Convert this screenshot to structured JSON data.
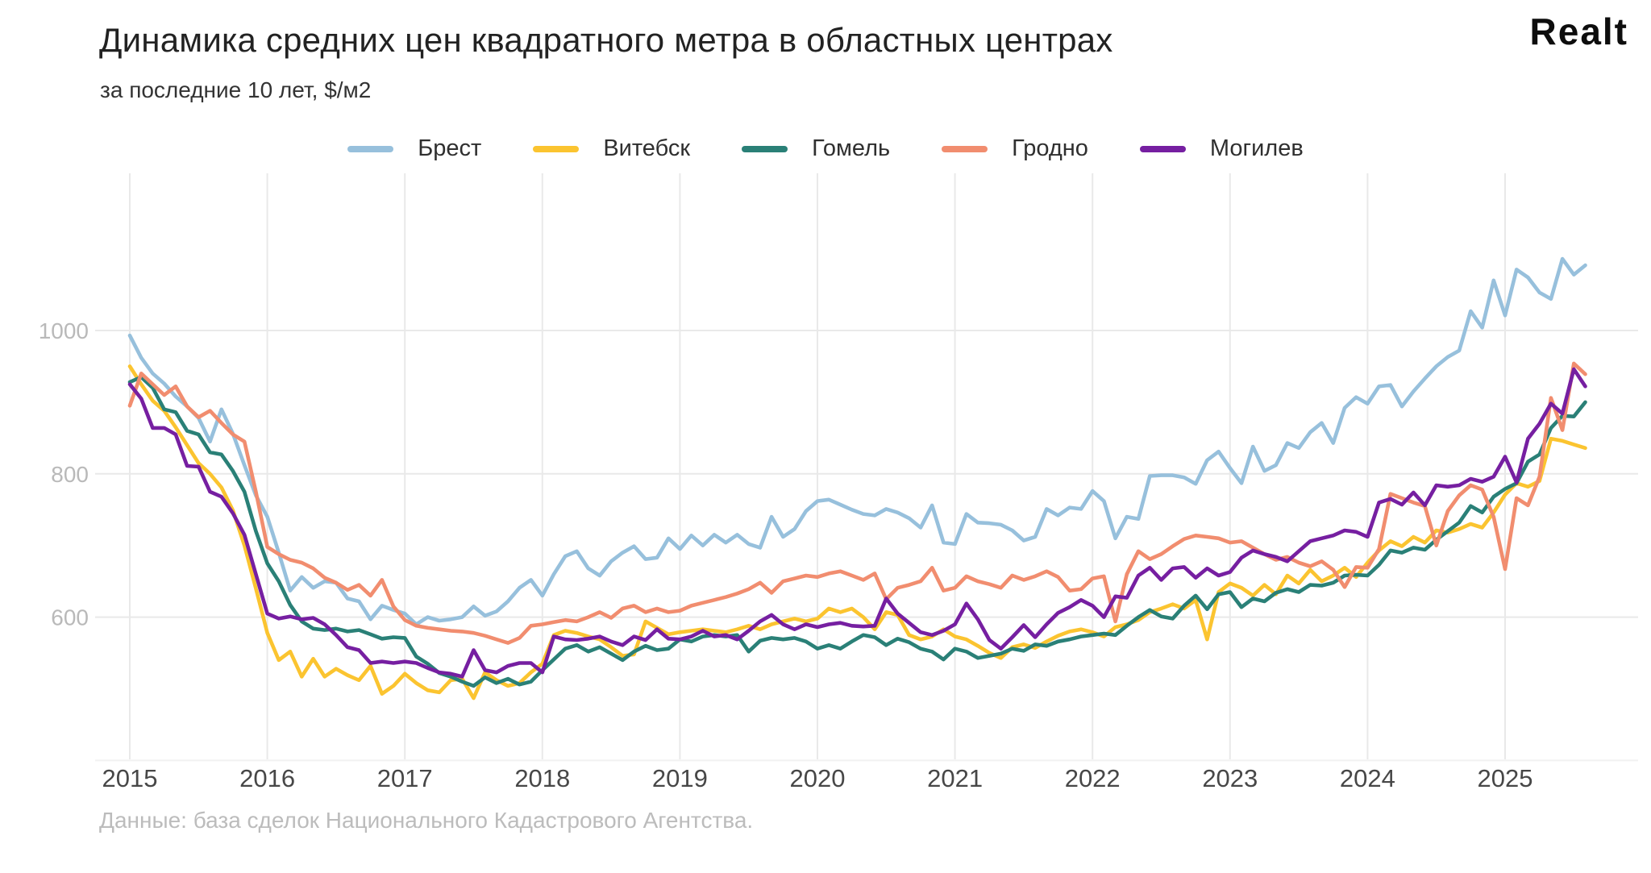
{
  "header": {
    "title": "Динамика средних цен квадратного метра в областных центрах",
    "subtitle": "за последние 10 лет, $/м2",
    "logo": "Realt"
  },
  "footer": {
    "source": "Данные: база сделок Национального Кадастрового Агентства."
  },
  "chart_data": {
    "type": "line",
    "title": "Динамика средних цен квадратного метра в областных центрах",
    "subtitle": "за последние 10 лет, $/м2",
    "x_start": "2015-01",
    "x_end": "2025-08",
    "points_per_series": 128,
    "x_tick_labels": [
      "2015",
      "2016",
      "2017",
      "2018",
      "2019",
      "2020",
      "2021",
      "2022",
      "2023",
      "2024",
      "2025"
    ],
    "y_ticks": [
      600,
      800,
      1000
    ],
    "ylim": [
      400,
      1150
    ],
    "grid": true,
    "legend_position": "top",
    "background_color": "#ffffff",
    "gridline_color": "#e9e9e9",
    "series": [
      {
        "name": "Брест",
        "color": "#97c0dc",
        "values": [
          993,
          962,
          940,
          926,
          908,
          894,
          878,
          845,
          890,
          856,
          812,
          770,
          740,
          690,
          637,
          656,
          641,
          650,
          648,
          626,
          622,
          597,
          616,
          610,
          605,
          590,
          600,
          595,
          597,
          600,
          615,
          602,
          608,
          622,
          641,
          652,
          630,
          660,
          685,
          692,
          668,
          658,
          678,
          690,
          699,
          681,
          683,
          710,
          695,
          714,
          700,
          715,
          704,
          715,
          702,
          697,
          740,
          712,
          723,
          748,
          762,
          764,
          757,
          750,
          744,
          742,
          751,
          746,
          738,
          725,
          756,
          704,
          702,
          744,
          732,
          731,
          729,
          721,
          707,
          712,
          751,
          742,
          753,
          751,
          776,
          762,
          710,
          740,
          737,
          797,
          798,
          798,
          795,
          786,
          819,
          831,
          808,
          787,
          838,
          804,
          812,
          843,
          836,
          858,
          871,
          843,
          892,
          907,
          898,
          922,
          924,
          894,
          915,
          933,
          950,
          963,
          972,
          1027,
          1004,
          1070,
          1021,
          1085,
          1074,
          1053,
          1044,
          1100,
          1078,
          1091
        ]
      },
      {
        "name": "Витебск",
        "color": "#fbc430",
        "values": [
          950,
          925,
          902,
          888,
          865,
          840,
          815,
          800,
          781,
          749,
          700,
          640,
          578,
          540,
          552,
          517,
          542,
          517,
          528,
          519,
          512,
          532,
          493,
          504,
          521,
          508,
          498,
          495,
          512,
          514,
          487,
          523,
          512,
          504,
          508,
          523,
          535,
          575,
          581,
          578,
          573,
          569,
          558,
          546,
          548,
          594,
          585,
          576,
          579,
          581,
          583,
          581,
          579,
          583,
          588,
          583,
          590,
          594,
          598,
          594,
          598,
          612,
          607,
          612,
          600,
          583,
          607,
          603,
          575,
          569,
          573,
          583,
          573,
          569,
          560,
          550,
          543,
          558,
          562,
          557,
          566,
          574,
          580,
          583,
          579,
          573,
          586,
          590,
          596,
          607,
          612,
          618,
          612,
          624,
          569,
          635,
          647,
          641,
          630,
          645,
          632,
          658,
          647,
          666,
          650,
          658,
          669,
          656,
          676,
          693,
          706,
          699,
          712,
          704,
          721,
          718,
          723,
          730,
          725,
          746,
          771,
          787,
          782,
          790,
          849,
          846,
          841,
          836
        ]
      },
      {
        "name": "Гомель",
        "color": "#2a8077",
        "values": [
          928,
          935,
          920,
          890,
          886,
          860,
          855,
          830,
          827,
          804,
          775,
          720,
          675,
          650,
          617,
          594,
          584,
          582,
          584,
          580,
          582,
          576,
          570,
          572,
          571,
          545,
          535,
          522,
          517,
          510,
          504,
          516,
          508,
          514,
          506,
          510,
          526,
          541,
          556,
          561,
          552,
          558,
          549,
          540,
          552,
          560,
          554,
          556,
          569,
          566,
          573,
          575,
          573,
          575,
          552,
          567,
          571,
          569,
          571,
          566,
          556,
          561,
          556,
          566,
          575,
          572,
          561,
          570,
          565,
          556,
          552,
          541,
          556,
          552,
          543,
          546,
          549,
          556,
          553,
          562,
          560,
          566,
          569,
          573,
          575,
          577,
          575,
          588,
          600,
          610,
          601,
          598,
          616,
          630,
          611,
          632,
          635,
          614,
          626,
          622,
          634,
          639,
          635,
          645,
          644,
          648,
          658,
          659,
          658,
          673,
          693,
          690,
          697,
          694,
          708,
          720,
          732,
          755,
          746,
          768,
          779,
          787,
          817,
          827,
          864,
          881,
          880,
          900
        ]
      },
      {
        "name": "Гродно",
        "color": "#f18d6f",
        "values": [
          895,
          940,
          925,
          910,
          922,
          894,
          879,
          888,
          871,
          855,
          845,
          775,
          698,
          688,
          680,
          676,
          668,
          655,
          648,
          638,
          645,
          630,
          652,
          615,
          596,
          588,
          585,
          583,
          581,
          580,
          578,
          574,
          569,
          564,
          571,
          588,
          590,
          593,
          596,
          594,
          600,
          607,
          599,
          612,
          616,
          607,
          612,
          607,
          609,
          616,
          620,
          624,
          628,
          633,
          639,
          648,
          634,
          650,
          654,
          658,
          656,
          661,
          664,
          658,
          652,
          661,
          625,
          641,
          645,
          650,
          669,
          637,
          641,
          657,
          650,
          646,
          641,
          658,
          652,
          657,
          664,
          656,
          637,
          639,
          654,
          657,
          594,
          660,
          692,
          681,
          688,
          699,
          709,
          714,
          712,
          710,
          704,
          706,
          697,
          688,
          680,
          684,
          676,
          671,
          678,
          666,
          642,
          670,
          669,
          695,
          772,
          766,
          760,
          755,
          700,
          748,
          770,
          784,
          778,
          740,
          667,
          766,
          756,
          796,
          906,
          861,
          954,
          939
        ]
      },
      {
        "name": "Могилев",
        "color": "#761fa1",
        "values": [
          925,
          905,
          864,
          864,
          855,
          811,
          810,
          775,
          768,
          745,
          715,
          660,
          605,
          598,
          601,
          597,
          599,
          590,
          575,
          558,
          554,
          536,
          538,
          536,
          538,
          536,
          529,
          523,
          521,
          517,
          554,
          526,
          523,
          532,
          536,
          536,
          523,
          573,
          569,
          568,
          570,
          573,
          566,
          561,
          573,
          568,
          583,
          570,
          569,
          573,
          581,
          573,
          575,
          569,
          581,
          594,
          603,
          590,
          583,
          590,
          586,
          590,
          592,
          588,
          587,
          588,
          626,
          605,
          592,
          579,
          575,
          581,
          590,
          619,
          597,
          568,
          556,
          572,
          589,
          572,
          590,
          606,
          614,
          624,
          616,
          600,
          629,
          627,
          658,
          669,
          652,
          668,
          670,
          655,
          668,
          658,
          663,
          683,
          693,
          688,
          684,
          678,
          692,
          706,
          710,
          714,
          721,
          719,
          712,
          760,
          765,
          757,
          774,
          756,
          784,
          782,
          784,
          793,
          789,
          796,
          824,
          788,
          849,
          870,
          898,
          884,
          946,
          922
        ]
      }
    ]
  }
}
